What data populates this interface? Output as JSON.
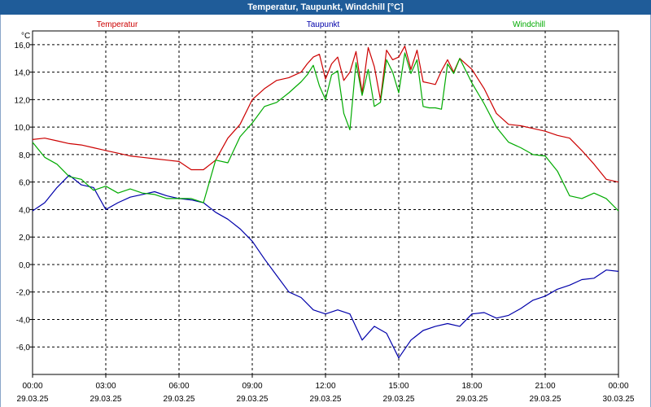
{
  "window": {
    "title": "Temperatur, Taupunkt, Windchill [°C]"
  },
  "chart_data": {
    "type": "line",
    "title": "Temperatur, Taupunkt, Windchill [°C]",
    "yunit": "°C",
    "ylim": [
      -8,
      17
    ],
    "yticks": [
      16,
      14,
      12,
      10,
      8,
      6,
      4,
      2,
      0,
      -2,
      -4,
      -6
    ],
    "ytick_labels": [
      "16,0",
      "14,0",
      "12,0",
      "10,0",
      "8,0",
      "6,0",
      "4,0",
      "2,0",
      "0,0",
      "-2,0",
      "-4,0",
      "-6,0"
    ],
    "xlim": [
      0,
      24
    ],
    "xticks": [
      0,
      3,
      6,
      9,
      12,
      15,
      18,
      21,
      24
    ],
    "xtick_labels": [
      {
        "time": "00:00",
        "date": "29.03.25"
      },
      {
        "time": "03:00",
        "date": "29.03.25"
      },
      {
        "time": "06:00",
        "date": "29.03.25"
      },
      {
        "time": "09:00",
        "date": "29.03.25"
      },
      {
        "time": "12:00",
        "date": "29.03.25"
      },
      {
        "time": "15:00",
        "date": "29.03.25"
      },
      {
        "time": "18:00",
        "date": "29.03.25"
      },
      {
        "time": "21:00",
        "date": "29.03.25"
      },
      {
        "time": "00:00",
        "date": "30.03.25"
      }
    ],
    "grid": true,
    "series": [
      {
        "name": "Temperatur",
        "color": "#cc0000",
        "x": [
          0,
          0.5,
          1,
          1.5,
          2,
          2.5,
          3,
          3.5,
          4,
          4.5,
          5,
          5.5,
          6,
          6.5,
          7,
          7.5,
          8,
          8.5,
          9,
          9.5,
          10,
          10.5,
          11,
          11.25,
          11.5,
          11.75,
          12,
          12.25,
          12.5,
          12.75,
          13,
          13.25,
          13.5,
          13.75,
          14,
          14.25,
          14.5,
          14.75,
          15,
          15.25,
          15.5,
          15.75,
          16,
          16.25,
          16.5,
          16.75,
          17,
          17.25,
          17.5,
          18,
          18.5,
          19,
          19.5,
          20,
          20.5,
          21,
          21.5,
          22,
          22.5,
          23,
          23.5,
          24
        ],
        "y": [
          9.1,
          9.2,
          9.0,
          8.8,
          8.7,
          8.5,
          8.3,
          8.1,
          7.9,
          7.8,
          7.7,
          7.6,
          7.5,
          6.9,
          6.9,
          7.6,
          9.2,
          10.2,
          12.0,
          12.8,
          13.4,
          13.6,
          14.0,
          14.6,
          15.1,
          15.3,
          13.5,
          14.6,
          15.1,
          13.4,
          14.0,
          15.5,
          12.5,
          15.8,
          14.4,
          12.0,
          15.6,
          14.9,
          15.1,
          15.9,
          14.2,
          15.6,
          13.3,
          13.2,
          13.1,
          14.1,
          14.9,
          14.0,
          15.0,
          14.2,
          12.8,
          11.0,
          10.2,
          10.1,
          9.9,
          9.7,
          9.4,
          9.2,
          8.3,
          7.3,
          6.2,
          6.0
        ]
      },
      {
        "name": "Taupunkt",
        "color": "#0000aa",
        "x": [
          0,
          0.5,
          1,
          1.5,
          2,
          2.5,
          3,
          3.5,
          4,
          4.5,
          5,
          5.5,
          6,
          6.5,
          7,
          7.5,
          8,
          8.5,
          9,
          9.5,
          10,
          10.5,
          11,
          11.5,
          12,
          12.5,
          13,
          13.5,
          14,
          14.5,
          15,
          15.5,
          16,
          16.5,
          17,
          17.5,
          18,
          18.5,
          19,
          19.5,
          20,
          20.5,
          21,
          21.5,
          22,
          22.5,
          23,
          23.5,
          24
        ],
        "y": [
          3.9,
          4.5,
          5.6,
          6.5,
          5.8,
          5.6,
          4.0,
          4.5,
          4.9,
          5.1,
          5.3,
          5.0,
          4.8,
          4.7,
          4.5,
          3.8,
          3.3,
          2.6,
          1.7,
          0.4,
          -0.8,
          -2.0,
          -2.4,
          -3.3,
          -3.6,
          -3.3,
          -3.6,
          -5.5,
          -4.5,
          -5.0,
          -6.8,
          -5.5,
          -4.8,
          -4.5,
          -4.3,
          -4.5,
          -3.6,
          -3.5,
          -3.9,
          -3.7,
          -3.2,
          -2.6,
          -2.3,
          -1.8,
          -1.5,
          -1.1,
          -1.0,
          -0.4,
          -0.5
        ]
      },
      {
        "name": "Windchill",
        "color": "#00aa00",
        "x": [
          0,
          0.5,
          1,
          1.5,
          2,
          2.5,
          3,
          3.5,
          4,
          4.5,
          5,
          5.5,
          6,
          6.5,
          7,
          7.5,
          8,
          8.5,
          9,
          9.5,
          10,
          10.5,
          11,
          11.25,
          11.5,
          11.75,
          12,
          12.25,
          12.5,
          12.75,
          13,
          13.25,
          13.5,
          13.75,
          14,
          14.25,
          14.5,
          14.75,
          15,
          15.25,
          15.5,
          15.75,
          16,
          16.25,
          16.5,
          16.75,
          17,
          17.25,
          17.5,
          18,
          18.5,
          19,
          19.5,
          20,
          20.5,
          21,
          21.5,
          22,
          22.5,
          23,
          23.5,
          24
        ],
        "y": [
          8.9,
          7.8,
          7.3,
          6.4,
          6.2,
          5.4,
          5.7,
          5.2,
          5.5,
          5.2,
          5.1,
          4.8,
          4.8,
          4.8,
          4.5,
          7.6,
          7.4,
          9.3,
          10.3,
          11.5,
          11.8,
          12.5,
          13.3,
          13.8,
          14.5,
          13.0,
          12.0,
          13.8,
          14.1,
          11.0,
          9.8,
          14.7,
          12.3,
          14.2,
          11.5,
          11.8,
          14.9,
          14.0,
          12.5,
          15.4,
          13.9,
          14.9,
          11.5,
          11.4,
          11.4,
          11.3,
          14.6,
          13.9,
          15.0,
          13.2,
          11.7,
          10.0,
          8.9,
          8.5,
          8.0,
          7.9,
          6.8,
          5.0,
          4.8,
          5.2,
          4.8,
          3.9
        ]
      }
    ]
  }
}
